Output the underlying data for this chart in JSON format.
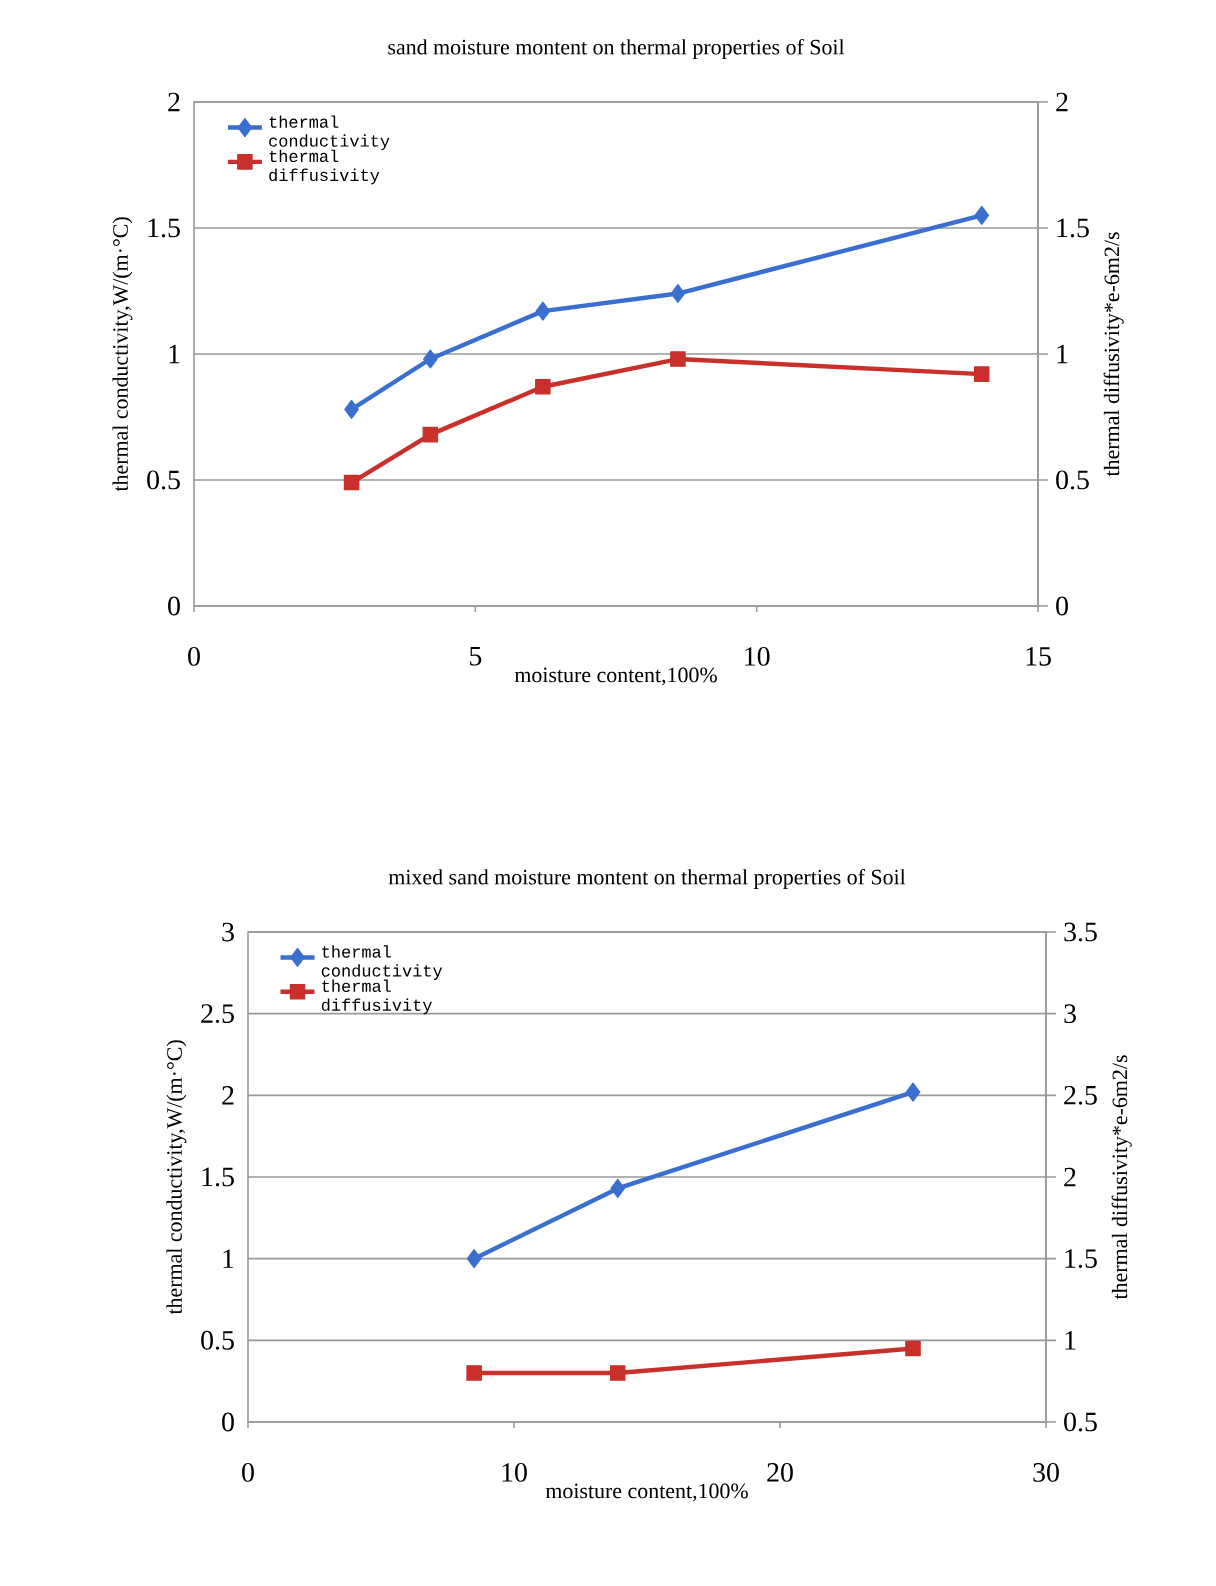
{
  "chart_data": [
    {
      "type": "line",
      "title": "sand moisture montent on thermal properties of Soil",
      "xlabel": "moisture content,100%",
      "ylabel": "thermal conductivity,W/(m·°C)",
      "y2label": "thermal diffusivity*e-6m2/s",
      "x": [
        2.8,
        4.2,
        6.2,
        8.6,
        14.0
      ],
      "series": [
        {
          "name": "thermal conductivity",
          "color": "#3a6fd0",
          "marker": "diamond",
          "values": [
            0.78,
            0.98,
            1.17,
            1.24,
            1.55
          ]
        },
        {
          "name": "thermal diffusivity",
          "color": "#c9302c",
          "marker": "square",
          "axis": "y2",
          "values": [
            0.49,
            0.68,
            0.87,
            0.98,
            0.92
          ]
        }
      ],
      "xlim": [
        0,
        15
      ],
      "xticks": [
        0,
        5,
        10,
        15
      ],
      "ylim": [
        0,
        2
      ],
      "yticks": [
        0,
        0.5,
        1,
        1.5,
        2
      ],
      "y2lim": [
        0,
        2
      ],
      "y2ticks": [
        0,
        0.5,
        1,
        1.5,
        2
      ],
      "grid": "y",
      "legend": "top left"
    },
    {
      "type": "line",
      "title": "mixed sand moisture montent on thermal properties of Soil",
      "xlabel": "moisture content,100%",
      "ylabel": "thermal conductivity,W/(m·°C)",
      "y2label": "thermal diffusivity*e-6m2/s",
      "x": [
        8.5,
        13.9,
        25.0
      ],
      "series": [
        {
          "name": "thermal conductivity",
          "color": "#3a6fd0",
          "marker": "diamond",
          "values": [
            1.0,
            1.43,
            2.02
          ]
        },
        {
          "name": "thermal diffusivity",
          "color": "#c9302c",
          "marker": "square",
          "axis": "y2",
          "values": [
            0.8,
            0.8,
            0.95
          ]
        }
      ],
      "xlim": [
        0,
        30
      ],
      "xticks": [
        0,
        10,
        20,
        30
      ],
      "ylim": [
        0,
        3
      ],
      "yticks": [
        0,
        0.5,
        1,
        1.5,
        2,
        2.5,
        3
      ],
      "y2lim": [
        0.5,
        3.5
      ],
      "y2ticks": [
        0.5,
        1,
        1.5,
        2,
        2.5,
        3,
        3.5
      ],
      "grid": "y",
      "legend": "top left"
    }
  ]
}
